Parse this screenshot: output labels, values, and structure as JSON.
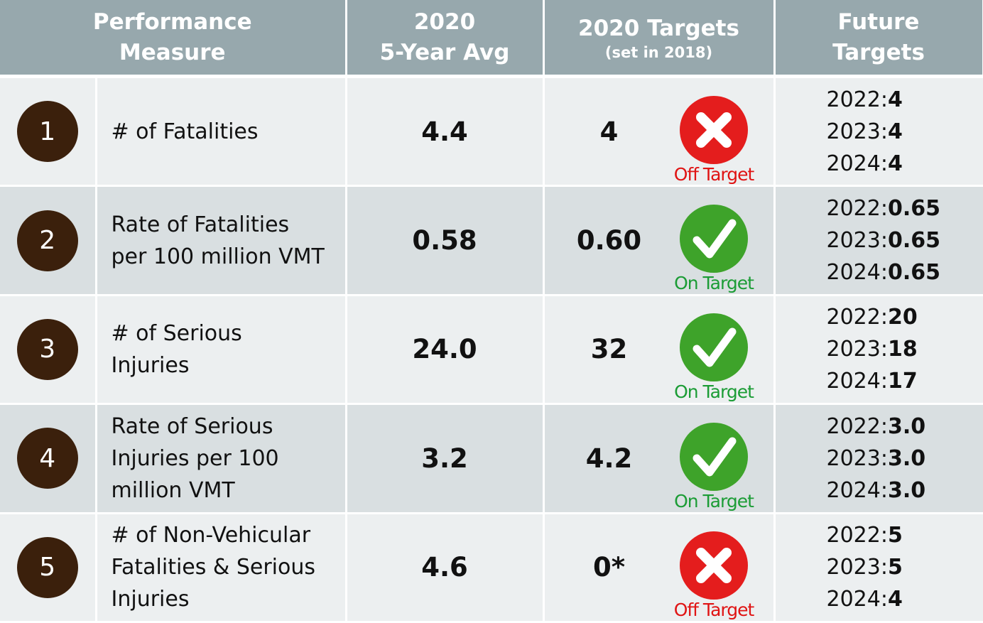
{
  "header": [
    {
      "lines": [
        "Performance",
        "Measure"
      ]
    },
    {
      "lines": [
        "2020",
        "5-Year Avg"
      ]
    },
    {
      "lines": [
        "2020 Targets"
      ],
      "note": "(set in 2018)"
    },
    {
      "lines": [
        "Future",
        "Targets"
      ]
    }
  ],
  "rows": [
    {
      "number": "1",
      "measure": [
        "# of Fatalities"
      ],
      "avg": "4.4",
      "target": "4",
      "status": "Off Target",
      "met": false,
      "future": [
        {
          "year": "2022:",
          "value": "4"
        },
        {
          "year": "2023:",
          "value": "4"
        },
        {
          "year": "2024:",
          "value": "4"
        }
      ]
    },
    {
      "number": "2",
      "measure": [
        "Rate of Fatalities",
        "per 100 million VMT"
      ],
      "avg": "0.58",
      "target": "0.60",
      "status": "On Target",
      "met": true,
      "future": [
        {
          "year": "2022:",
          "value": "0.65"
        },
        {
          "year": "2023:",
          "value": "0.65"
        },
        {
          "year": "2024:",
          "value": "0.65"
        }
      ]
    },
    {
      "number": "3",
      "measure": [
        "# of Serious",
        "Injuries"
      ],
      "avg": "24.0",
      "target": "32",
      "status": "On Target",
      "met": true,
      "future": [
        {
          "year": "2022:",
          "value": "20"
        },
        {
          "year": "2023:",
          "value": "18"
        },
        {
          "year": "2024:",
          "value": "17"
        }
      ]
    },
    {
      "number": "4",
      "measure": [
        "Rate of Serious",
        "Injuries per 100",
        "million VMT"
      ],
      "avg": "3.2",
      "target": "4.2",
      "status": "On Target",
      "met": true,
      "future": [
        {
          "year": "2022:",
          "value": "3.0"
        },
        {
          "year": "2023:",
          "value": "3.0"
        },
        {
          "year": "2024:",
          "value": "3.0"
        }
      ]
    },
    {
      "number": "5",
      "measure": [
        "# of Non-Vehicular",
        "Fatalities & Serious",
        "Injuries"
      ],
      "avg": "4.6",
      "target": "0*",
      "status": "Off Target",
      "met": false,
      "future": [
        {
          "year": "2022:",
          "value": "5"
        },
        {
          "year": "2023:",
          "value": "5"
        },
        {
          "year": "2024:",
          "value": "4"
        }
      ]
    }
  ]
}
